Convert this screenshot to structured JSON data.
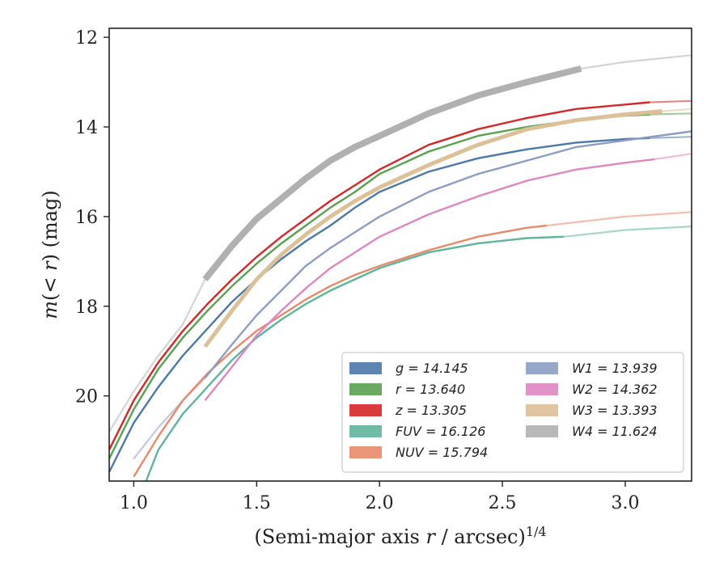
{
  "chart_data": {
    "type": "line",
    "xlabel": "(Semi-major axis r / arcsec)^1/4",
    "ylabel": "m(< r) (mag)",
    "xlim": [
      0.9,
      3.27
    ],
    "ylim": [
      21.9,
      11.8
    ],
    "y_inverted": true,
    "grid": false,
    "legend_position": "bottom-right",
    "x_ticks": [
      "1.0",
      "1.5",
      "2.0",
      "2.5",
      "3.0"
    ],
    "y_ticks": [
      "12",
      "14",
      "16",
      "18",
      "20"
    ],
    "series": [
      {
        "name": "g = 14.145",
        "color": "#4c78a8",
        "x": [
          0.9,
          1.0,
          1.1,
          1.2,
          1.3,
          1.4,
          1.5,
          1.6,
          1.7,
          1.8,
          1.9,
          2.0,
          2.2,
          2.4,
          2.6,
          2.8,
          3.0,
          3.1
        ],
        "y": [
          21.7,
          20.6,
          19.8,
          19.1,
          18.5,
          17.9,
          17.4,
          16.95,
          16.55,
          16.2,
          15.8,
          15.45,
          15.0,
          14.7,
          14.5,
          14.35,
          14.27,
          14.25
        ]
      },
      {
        "name": "r = 13.640",
        "color": "#59a14f",
        "x": [
          0.9,
          1.0,
          1.1,
          1.2,
          1.3,
          1.4,
          1.5,
          1.6,
          1.7,
          1.8,
          1.9,
          2.0,
          2.2,
          2.4,
          2.6,
          2.8,
          3.0,
          3.1
        ],
        "y": [
          21.4,
          20.3,
          19.4,
          18.7,
          18.1,
          17.55,
          17.05,
          16.6,
          16.2,
          15.8,
          15.45,
          15.05,
          14.55,
          14.2,
          14.0,
          13.85,
          13.75,
          13.72
        ]
      },
      {
        "name": "z = 13.305",
        "color": "#d62728",
        "x": [
          0.9,
          1.0,
          1.1,
          1.2,
          1.3,
          1.4,
          1.5,
          1.6,
          1.7,
          1.8,
          1.9,
          2.0,
          2.2,
          2.4,
          2.6,
          2.8,
          3.0,
          3.1
        ],
        "y": [
          21.2,
          20.1,
          19.25,
          18.55,
          17.95,
          17.4,
          16.9,
          16.45,
          16.05,
          15.65,
          15.3,
          14.95,
          14.4,
          14.05,
          13.8,
          13.6,
          13.5,
          13.45
        ]
      },
      {
        "name": "FUV = 16.126",
        "color": "#5fb49c",
        "x": [
          1.05,
          1.1,
          1.2,
          1.3,
          1.4,
          1.5,
          1.6,
          1.7,
          1.8,
          1.9,
          2.0,
          2.2,
          2.4,
          2.6,
          2.75
        ],
        "y": [
          21.9,
          21.2,
          20.4,
          19.8,
          19.2,
          18.7,
          18.3,
          17.95,
          17.65,
          17.4,
          17.15,
          16.8,
          16.6,
          16.48,
          16.45
        ]
      },
      {
        "name": "NUV = 15.794",
        "color": "#e8896a",
        "x": [
          1.0,
          1.1,
          1.2,
          1.3,
          1.4,
          1.5,
          1.6,
          1.7,
          1.8,
          1.9,
          2.0,
          2.2,
          2.4,
          2.6,
          2.68
        ],
        "y": [
          21.8,
          20.9,
          20.1,
          19.5,
          19.0,
          18.55,
          18.2,
          17.85,
          17.55,
          17.3,
          17.1,
          16.75,
          16.45,
          16.25,
          16.2
        ]
      },
      {
        "name": "W1 = 13.939",
        "color": "#8c9dc4",
        "x": [
          1.29,
          1.4,
          1.5,
          1.6,
          1.7,
          1.8,
          1.9,
          2.0,
          2.2,
          2.4,
          2.6,
          2.8,
          3.0,
          3.27
        ],
        "y": [
          19.6,
          18.85,
          18.2,
          17.65,
          17.1,
          16.7,
          16.35,
          16.0,
          15.45,
          15.05,
          14.75,
          14.45,
          14.3,
          14.1
        ]
      },
      {
        "name": "W2 = 14.362",
        "color": "#de86c1",
        "x": [
          1.29,
          1.4,
          1.5,
          1.6,
          1.7,
          1.8,
          1.9,
          2.0,
          2.2,
          2.4,
          2.6,
          2.8,
          3.0,
          3.12
        ],
        "y": [
          20.1,
          19.35,
          18.65,
          18.1,
          17.6,
          17.15,
          16.8,
          16.45,
          15.95,
          15.55,
          15.2,
          14.95,
          14.8,
          14.72
        ]
      },
      {
        "name": "W3 = 13.393",
        "color": "#dcc097",
        "x": [
          1.29,
          1.4,
          1.5,
          1.6,
          1.7,
          1.8,
          1.9,
          2.0,
          2.2,
          2.4,
          2.6,
          2.8,
          3.0,
          3.15
        ],
        "y": [
          18.9,
          18.1,
          17.4,
          16.85,
          16.4,
          16.0,
          15.65,
          15.35,
          14.85,
          14.4,
          14.05,
          13.85,
          13.72,
          13.65
        ]
      },
      {
        "name": "W4 = 11.624",
        "color": "#b0b0b0",
        "x": [
          1.29,
          1.4,
          1.5,
          1.6,
          1.7,
          1.8,
          1.9,
          2.0,
          2.2,
          2.4,
          2.6,
          2.82
        ],
        "y": [
          17.4,
          16.65,
          16.05,
          15.6,
          15.15,
          14.75,
          14.45,
          14.2,
          13.7,
          13.3,
          13.0,
          12.7
        ]
      }
    ],
    "extrapolated_series": [
      {
        "color": "#4c78a8",
        "x": [
          3.1,
          3.27
        ],
        "y": [
          14.25,
          14.22
        ]
      },
      {
        "color": "#59a14f",
        "x": [
          3.1,
          3.27
        ],
        "y": [
          13.72,
          13.7
        ]
      },
      {
        "color": "#d62728",
        "x": [
          3.1,
          3.27
        ],
        "y": [
          13.45,
          13.42
        ]
      },
      {
        "color": "#5fb49c",
        "x": [
          2.75,
          3.0,
          3.27
        ],
        "y": [
          16.45,
          16.3,
          16.22
        ]
      },
      {
        "color": "#e8896a",
        "x": [
          2.68,
          3.0,
          3.27
        ],
        "y": [
          16.2,
          16.0,
          15.9
        ]
      },
      {
        "color": "#8c9dc4",
        "x": [
          1.0,
          1.1,
          1.2,
          1.29
        ],
        "y": [
          21.4,
          20.7,
          20.1,
          19.6
        ]
      },
      {
        "color": "#de86c1",
        "x": [
          3.12,
          3.27
        ],
        "y": [
          14.72,
          14.6
        ]
      },
      {
        "color": "#dcc097",
        "x": [
          3.15,
          3.27
        ],
        "y": [
          13.65,
          13.6
        ]
      },
      {
        "color": "#b0b0b0",
        "x": [
          0.9,
          1.0,
          1.1,
          1.2,
          1.29
        ],
        "y": [
          20.8,
          19.9,
          19.1,
          18.4,
          17.4
        ]
      },
      {
        "color": "#b0b0b0",
        "x": [
          2.82,
          3.0,
          3.27
        ],
        "y": [
          12.7,
          12.55,
          12.4
        ]
      }
    ]
  }
}
